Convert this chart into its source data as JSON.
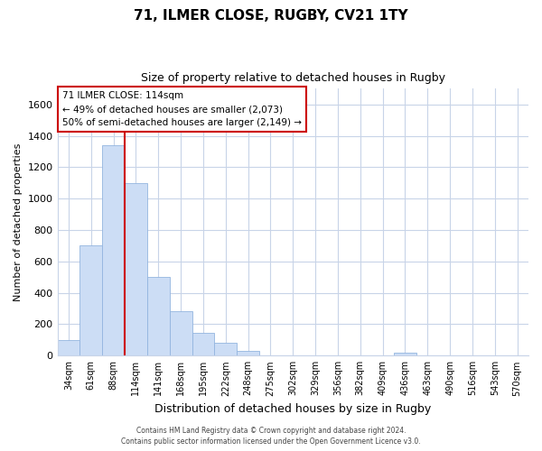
{
  "title": "71, ILMER CLOSE, RUGBY, CV21 1TY",
  "subtitle": "Size of property relative to detached houses in Rugby",
  "xlabel": "Distribution of detached houses by size in Rugby",
  "ylabel": "Number of detached properties",
  "bar_color": "#ccddf5",
  "bar_edge_color": "#93b5df",
  "vline_color": "#cc0000",
  "vline_x_index": 3,
  "categories": [
    "34sqm",
    "61sqm",
    "88sqm",
    "114sqm",
    "141sqm",
    "168sqm",
    "195sqm",
    "222sqm",
    "248sqm",
    "275sqm",
    "302sqm",
    "329sqm",
    "356sqm",
    "382sqm",
    "409sqm",
    "436sqm",
    "463sqm",
    "490sqm",
    "516sqm",
    "543sqm",
    "570sqm"
  ],
  "values": [
    100,
    700,
    1340,
    1100,
    500,
    285,
    145,
    80,
    30,
    0,
    0,
    0,
    0,
    0,
    0,
    20,
    0,
    0,
    0,
    0,
    0
  ],
  "ylim": [
    0,
    1700
  ],
  "yticks": [
    0,
    200,
    400,
    600,
    800,
    1000,
    1200,
    1400,
    1600
  ],
  "annotation_title": "71 ILMER CLOSE: 114sqm",
  "annotation_line1": "← 49% of detached houses are smaller (2,073)",
  "annotation_line2": "50% of semi-detached houses are larger (2,149) →",
  "footer1": "Contains HM Land Registry data © Crown copyright and database right 2024.",
  "footer2": "Contains public sector information licensed under the Open Government Licence v3.0.",
  "background_color": "#ffffff",
  "annotation_box_color": "#ffffff",
  "annotation_box_edge": "#cc0000",
  "grid_color": "#c8d4e8",
  "title_fontsize": 11,
  "subtitle_fontsize": 9,
  "ylabel_fontsize": 8,
  "xlabel_fontsize": 9,
  "ytick_fontsize": 8,
  "xtick_fontsize": 7
}
